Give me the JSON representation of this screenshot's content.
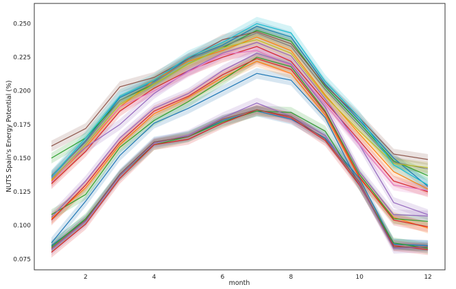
{
  "chart_data": {
    "type": "line",
    "title": "",
    "xlabel": "month",
    "ylabel": "NUTS Spain's Energy Potential (%)",
    "xlim": [
      0.5,
      12.5
    ],
    "ylim": [
      0.067,
      0.265
    ],
    "xticks": [
      2,
      4,
      6,
      8,
      10,
      12
    ],
    "yticks": [
      0.075,
      0.1,
      0.125,
      0.15,
      0.175,
      0.2,
      0.225,
      0.25
    ],
    "ytick_labels": [
      "0.075",
      "0.100",
      "0.125",
      "0.150",
      "0.175",
      "0.200",
      "0.225",
      "0.250"
    ],
    "grid": false,
    "legend": "none",
    "x": [
      1,
      2,
      3,
      4,
      5,
      6,
      7,
      8,
      9,
      10,
      11,
      12
    ],
    "series": [
      {
        "color": "#1f77b4",
        "band": 0.004,
        "values": [
          0.136,
          0.163,
          0.195,
          0.207,
          0.224,
          0.234,
          0.248,
          0.24,
          0.205,
          0.178,
          0.15,
          0.129
        ]
      },
      {
        "color": "#ff7f0e",
        "band": 0.004,
        "values": [
          0.133,
          0.158,
          0.188,
          0.208,
          0.222,
          0.23,
          0.24,
          0.23,
          0.197,
          0.168,
          0.14,
          0.127
        ]
      },
      {
        "color": "#2ca02c",
        "band": 0.004,
        "values": [
          0.15,
          0.165,
          0.193,
          0.205,
          0.22,
          0.232,
          0.245,
          0.237,
          0.203,
          0.176,
          0.148,
          0.137
        ]
      },
      {
        "color": "#d62728",
        "band": 0.004,
        "values": [
          0.131,
          0.155,
          0.185,
          0.202,
          0.215,
          0.225,
          0.233,
          0.222,
          0.192,
          0.163,
          0.133,
          0.125
        ]
      },
      {
        "color": "#9467bd",
        "band": 0.004,
        "values": [
          0.135,
          0.158,
          0.175,
          0.198,
          0.215,
          0.228,
          0.236,
          0.226,
          0.194,
          0.16,
          0.117,
          0.108
        ]
      },
      {
        "color": "#8c564b",
        "band": 0.004,
        "values": [
          0.159,
          0.172,
          0.203,
          0.21,
          0.224,
          0.238,
          0.244,
          0.235,
          0.204,
          0.18,
          0.153,
          0.149
        ]
      },
      {
        "color": "#e377c2",
        "band": 0.004,
        "values": [
          0.132,
          0.16,
          0.188,
          0.2,
          0.214,
          0.227,
          0.23,
          0.219,
          0.19,
          0.16,
          0.13,
          0.126
        ]
      },
      {
        "color": "#7f7f7f",
        "band": 0.004,
        "values": [
          0.137,
          0.162,
          0.193,
          0.206,
          0.223,
          0.233,
          0.243,
          0.233,
          0.201,
          0.174,
          0.147,
          0.142
        ]
      },
      {
        "color": "#bcbd22",
        "band": 0.004,
        "values": [
          0.134,
          0.16,
          0.19,
          0.205,
          0.22,
          0.232,
          0.238,
          0.228,
          0.196,
          0.17,
          0.146,
          0.143
        ]
      },
      {
        "color": "#17becf",
        "band": 0.005,
        "values": [
          0.136,
          0.165,
          0.196,
          0.208,
          0.225,
          0.236,
          0.25,
          0.243,
          0.207,
          0.18,
          0.145,
          0.13
        ]
      },
      {
        "color": "#1f77b4",
        "band": 0.004,
        "values": [
          0.087,
          0.118,
          0.152,
          0.176,
          0.187,
          0.2,
          0.213,
          0.208,
          0.18,
          0.13,
          0.086,
          0.085
        ]
      },
      {
        "color": "#ff7f0e",
        "band": 0.004,
        "values": [
          0.105,
          0.128,
          0.16,
          0.183,
          0.195,
          0.21,
          0.222,
          0.213,
          0.182,
          0.135,
          0.106,
          0.098
        ]
      },
      {
        "color": "#2ca02c",
        "band": 0.004,
        "values": [
          0.108,
          0.123,
          0.158,
          0.178,
          0.192,
          0.208,
          0.225,
          0.218,
          0.185,
          0.138,
          0.105,
          0.103
        ]
      },
      {
        "color": "#d62728",
        "band": 0.004,
        "values": [
          0.104,
          0.13,
          0.162,
          0.185,
          0.196,
          0.212,
          0.224,
          0.216,
          0.184,
          0.136,
          0.104,
          0.099
        ]
      },
      {
        "color": "#9467bd",
        "band": 0.004,
        "values": [
          0.106,
          0.133,
          0.165,
          0.187,
          0.198,
          0.215,
          0.228,
          0.22,
          0.188,
          0.14,
          0.108,
          0.107
        ]
      },
      {
        "color": "#1f77b4",
        "band": 0.004,
        "values": [
          0.085,
          0.104,
          0.138,
          0.162,
          0.166,
          0.178,
          0.185,
          0.179,
          0.165,
          0.135,
          0.086,
          0.085
        ]
      },
      {
        "color": "#2ca02c",
        "band": 0.004,
        "values": [
          0.084,
          0.105,
          0.137,
          0.16,
          0.166,
          0.177,
          0.185,
          0.184,
          0.17,
          0.13,
          0.087,
          0.083
        ]
      },
      {
        "color": "#d62728",
        "band": 0.004,
        "values": [
          0.08,
          0.101,
          0.135,
          0.16,
          0.164,
          0.176,
          0.186,
          0.18,
          0.163,
          0.13,
          0.085,
          0.082
        ]
      },
      {
        "color": "#9467bd",
        "band": 0.004,
        "values": [
          0.082,
          0.103,
          0.137,
          0.161,
          0.167,
          0.18,
          0.191,
          0.181,
          0.167,
          0.131,
          0.083,
          0.084
        ]
      },
      {
        "color": "#8c564b",
        "band": 0.003,
        "values": [
          0.083,
          0.104,
          0.138,
          0.162,
          0.166,
          0.179,
          0.186,
          0.181,
          0.164,
          0.132,
          0.084,
          0.084
        ]
      }
    ]
  }
}
